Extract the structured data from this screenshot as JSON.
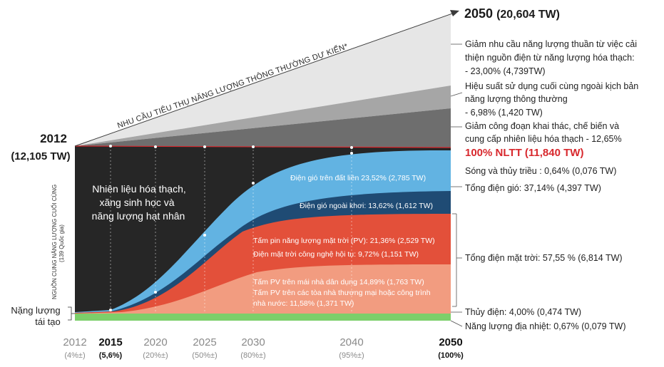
{
  "colors": {
    "fossil": "#262626",
    "wind_onshore": "#62b3e2",
    "wind_offshore": "#1f4b74",
    "solar_pv": "#e3503a",
    "rooftop_pv": "#f29c80",
    "hydro": "#7ccf6a",
    "demand_light": "#e6e6e6",
    "demand_mid": "#a6a6a6",
    "demand_dark": "#6e6e6e",
    "red_line": "#d8282d",
    "dim_text": "#8a8a8a"
  },
  "start_label": {
    "year": "2012",
    "value": "(12,105 TW)"
  },
  "end_label": {
    "year": "2050",
    "value": "(20,604 TW)"
  },
  "diagonal_label": "NHU CẦU TIÊU THỤ NĂNG LƯỢNG THÔNG THƯỜNG DỰ KIẾN*",
  "y_axis_label": [
    "NGUỒN CUNG NĂNG LƯỢNG CUỐI CÙNG",
    "(139 Quốc gia)"
  ],
  "left_bottom_label": [
    "Nặng lượng",
    "tái tạo"
  ],
  "fossil_label": [
    "Nhiên liệu hóa thạch,",
    "xăng sinh học và",
    "năng lượng hạt nhân"
  ],
  "inner_labels": {
    "onshore": "Điện gió trên đất liền 23,52% (2,785 TW)",
    "offshore": "Điện gió ngoài khơi: 13,62% (1,612 TW)",
    "pv": "Tấm pin năng lượng mặt trời (PV): 21,36% (2,529 TW)",
    "csp": "Điện mặt trời công nghệ hội tụ: 9,72% (1,151 TW)",
    "rooftop": [
      "Tấm PV trên mái nhà dân dụng 14,89% (1,763 TW)",
      "Tấm PV trên các tòa nhà thương mại hoặc công trình",
      "nhà nước: 11,58% (1,371 TW)"
    ]
  },
  "right_labels": {
    "demand_reduction_1": [
      "Giảm nhu cầu năng lượng thuần từ việc cải",
      "thiện nguồn điện từ năng lượng hóa thạch:",
      "- 23,00% (4,739TW)"
    ],
    "demand_reduction_2": [
      "Hiệu suất sử dụng cuối cùng ngoài kịch bản",
      "năng lượng thông thường",
      "- 6,98% (1,420 TW)"
    ],
    "demand_reduction_3": [
      "Giảm công đoạn khai thác, chế biến và",
      "cung cấp nhiên liệu hóa thạch - 12,65%"
    ],
    "total_100": "100% NLTT (11,840 TW)",
    "tidal": "Sóng và thủy triều : 0,64% (0,076 TW)",
    "wind_total": "Tổng điện gió: 37,14% (4,397 TW)",
    "solar_total": "Tổng điện mặt trời: 57,55 % (6,814 TW)",
    "hydro": "Thủy điện: 4,00% (0,474 TW)",
    "geothermal": "Năng lượng địa nhiệt: 0,67% (0,079 TW)"
  },
  "chart_data": {
    "type": "area",
    "x_ticks": [
      {
        "year": "2012",
        "share": "(4%±)",
        "bold": false
      },
      {
        "year": "2015",
        "share": "(5,6%)",
        "bold": true
      },
      {
        "year": "2020",
        "share": "(20%±)",
        "bold": false
      },
      {
        "year": "2025",
        "share": "(50%±)",
        "bold": false
      },
      {
        "year": "2030",
        "share": "(80%±)",
        "bold": false
      },
      {
        "year": "2040",
        "share": "(95%±)",
        "bold": false
      },
      {
        "year": "2050",
        "share": "(100%)",
        "bold": true
      }
    ],
    "renewable_share_percent": {
      "x": [
        2012,
        2015,
        2020,
        2025,
        2030,
        2040,
        2050
      ],
      "y": [
        4,
        5.6,
        20,
        50,
        80,
        95,
        100
      ]
    },
    "demand_TW": {
      "2012": 12105,
      "2050_conventional": 20604,
      "2050_renewable": 11840
    },
    "series_2050_percent": [
      {
        "name": "Năng lượng địa nhiệt",
        "value": 0.67
      },
      {
        "name": "Thủy điện",
        "value": 4.0
      },
      {
        "name": "Tấm PV trên mái nhà / công trình",
        "value": 26.47
      },
      {
        "name": "Điện mặt trời công nghệ hội tụ",
        "value": 9.72
      },
      {
        "name": "Tấm pin năng lượng mặt trời (PV)",
        "value": 21.36
      },
      {
        "name": "Điện gió ngoài khơi",
        "value": 13.62
      },
      {
        "name": "Điện gió trên đất liền",
        "value": 23.52
      },
      {
        "name": "Sóng và thủy triều",
        "value": 0.64
      }
    ]
  }
}
